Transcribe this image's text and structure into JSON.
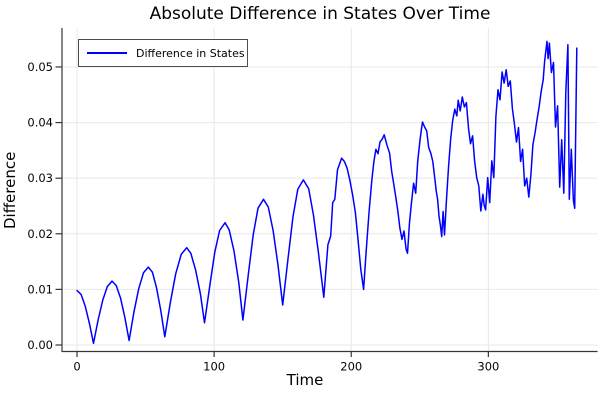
{
  "chart_data": {
    "type": "line",
    "title": "Absolute Difference in States Over Time",
    "xlabel": "Time",
    "ylabel": "Difference",
    "xlim": [
      -10.95,
      379.6
    ],
    "ylim": [
      -0.00117,
      0.05701
    ],
    "grid": true,
    "legend_position": "top-left",
    "colors": {
      "background": "#ffffff",
      "grid": "#e8e8e8",
      "axis": "#363636",
      "tick_label": "#060606",
      "line": "#0000ff"
    },
    "x_ticks": {
      "values": [
        0,
        100,
        200,
        300
      ],
      "labels": [
        "0",
        "100",
        "200",
        "300"
      ]
    },
    "y_ticks": {
      "values": [
        0.0,
        0.01,
        0.02,
        0.03,
        0.04,
        0.05
      ],
      "labels": [
        "0.00",
        "0.01",
        "0.02",
        "0.03",
        "0.04",
        "0.05"
      ]
    },
    "legend": {
      "entries": [
        {
          "label": "Difference in States",
          "color": "#0000ff"
        }
      ]
    },
    "series": [
      {
        "name": "Difference in States",
        "color": "#0000ff",
        "points": [
          [
            0,
            0.0098
          ],
          [
            3,
            0.0091
          ],
          [
            6,
            0.007
          ],
          [
            9,
            0.0039
          ],
          [
            12,
            0.0003
          ],
          [
            15.4,
            0.0045
          ],
          [
            18.8,
            0.0081
          ],
          [
            22.1,
            0.0105
          ],
          [
            25.5,
            0.0115
          ],
          [
            28.6,
            0.0107
          ],
          [
            31.8,
            0.0084
          ],
          [
            34.9,
            0.0049
          ],
          [
            38,
            0.0008
          ],
          [
            41.5,
            0.0059
          ],
          [
            45,
            0.0101
          ],
          [
            48.5,
            0.013
          ],
          [
            52,
            0.014
          ],
          [
            55,
            0.0131
          ],
          [
            58,
            0.0103
          ],
          [
            61,
            0.0063
          ],
          [
            64,
            0.0015
          ],
          [
            68,
            0.0076
          ],
          [
            72,
            0.0128
          ],
          [
            76,
            0.0163
          ],
          [
            80,
            0.0175
          ],
          [
            83,
            0.0165
          ],
          [
            86.5,
            0.0135
          ],
          [
            90,
            0.0092
          ],
          [
            93,
            0.004
          ],
          [
            97,
            0.0109
          ],
          [
            100.5,
            0.0167
          ],
          [
            104,
            0.0206
          ],
          [
            108,
            0.022
          ],
          [
            111,
            0.0207
          ],
          [
            114.5,
            0.0169
          ],
          [
            118,
            0.0112
          ],
          [
            121,
            0.0045
          ],
          [
            125,
            0.0128
          ],
          [
            128.5,
            0.0198
          ],
          [
            132,
            0.0246
          ],
          [
            136,
            0.0262
          ],
          [
            139.5,
            0.0248
          ],
          [
            143,
            0.0206
          ],
          [
            146.5,
            0.0145
          ],
          [
            150,
            0.0072
          ],
          [
            154,
            0.0158
          ],
          [
            157.5,
            0.0231
          ],
          [
            161,
            0.028
          ],
          [
            165,
            0.0297
          ],
          [
            169,
            0.0281
          ],
          [
            172.5,
            0.0233
          ],
          [
            176,
            0.0168
          ],
          [
            180,
            0.0086
          ],
          [
            183,
            0.018
          ],
          [
            185,
            0.0196
          ],
          [
            186.5,
            0.0256
          ],
          [
            188,
            0.0262
          ],
          [
            190,
            0.0315
          ],
          [
            193,
            0.0336
          ],
          [
            195,
            0.033
          ],
          [
            197,
            0.0318
          ],
          [
            199,
            0.0296
          ],
          [
            201,
            0.027
          ],
          [
            203,
            0.0238
          ],
          [
            205,
            0.0188
          ],
          [
            207,
            0.0136
          ],
          [
            209,
            0.01
          ],
          [
            211,
            0.0172
          ],
          [
            213,
            0.024
          ],
          [
            215,
            0.0296
          ],
          [
            216.5,
            0.033
          ],
          [
            218,
            0.0352
          ],
          [
            219.5,
            0.0344
          ],
          [
            221,
            0.0365
          ],
          [
            222.5,
            0.037
          ],
          [
            224,
            0.0378
          ],
          [
            226,
            0.036
          ],
          [
            228,
            0.0345
          ],
          [
            229.5,
            0.0312
          ],
          [
            231,
            0.029
          ],
          [
            232.5,
            0.0266
          ],
          [
            234,
            0.024
          ],
          [
            235.5,
            0.021
          ],
          [
            237,
            0.019
          ],
          [
            238.5,
            0.0205
          ],
          [
            240,
            0.0172
          ],
          [
            241,
            0.0165
          ],
          [
            242.5,
            0.022
          ],
          [
            244,
            0.0258
          ],
          [
            245.5,
            0.0291
          ],
          [
            247,
            0.0273
          ],
          [
            248.5,
            0.033
          ],
          [
            250,
            0.0365
          ],
          [
            251,
            0.0385
          ],
          [
            252,
            0.0401
          ],
          [
            253.5,
            0.0392
          ],
          [
            255,
            0.0385
          ],
          [
            256.5,
            0.0355
          ],
          [
            258,
            0.0345
          ],
          [
            259.5,
            0.033
          ],
          [
            261,
            0.0298
          ],
          [
            262,
            0.0276
          ],
          [
            263,
            0.0262
          ],
          [
            264,
            0.0232
          ],
          [
            265,
            0.0215
          ],
          [
            266,
            0.0195
          ],
          [
            267,
            0.024
          ],
          [
            268,
            0.0198
          ],
          [
            269.5,
            0.0262
          ],
          [
            271,
            0.0322
          ],
          [
            272.5,
            0.0371
          ],
          [
            274,
            0.0404
          ],
          [
            275.5,
            0.0424
          ],
          [
            277,
            0.0412
          ],
          [
            278,
            0.044
          ],
          [
            279.5,
            0.0421
          ],
          [
            281,
            0.0446
          ],
          [
            282.5,
            0.0428
          ],
          [
            284,
            0.0436
          ],
          [
            285.5,
            0.039
          ],
          [
            287,
            0.0362
          ],
          [
            288.5,
            0.0376
          ],
          [
            290,
            0.0331
          ],
          [
            291.5,
            0.0301
          ],
          [
            293,
            0.0286
          ],
          [
            294.5,
            0.0241
          ],
          [
            296,
            0.0271
          ],
          [
            297,
            0.0251
          ],
          [
            298,
            0.0243
          ],
          [
            299.5,
            0.0301
          ],
          [
            301,
            0.0256
          ],
          [
            302.5,
            0.0331
          ],
          [
            304,
            0.0301
          ],
          [
            305.5,
            0.0411
          ],
          [
            307,
            0.0459
          ],
          [
            308.5,
            0.0441
          ],
          [
            310,
            0.0491
          ],
          [
            311.5,
            0.0471
          ],
          [
            313,
            0.0495
          ],
          [
            314.5,
            0.0465
          ],
          [
            316,
            0.0475
          ],
          [
            317.5,
            0.0425
          ],
          [
            319,
            0.0398
          ],
          [
            320.5,
            0.0365
          ],
          [
            322,
            0.0391
          ],
          [
            323.5,
            0.033
          ],
          [
            325,
            0.0352
          ],
          [
            326.5,
            0.0286
          ],
          [
            328,
            0.03
          ],
          [
            329.5,
            0.0266
          ],
          [
            331,
            0.0306
          ],
          [
            332.5,
            0.036
          ],
          [
            334,
            0.0381
          ],
          [
            335.5,
            0.0405
          ],
          [
            337,
            0.0428
          ],
          [
            338.5,
            0.0455
          ],
          [
            340,
            0.0477
          ],
          [
            341,
            0.051
          ],
          [
            342,
            0.053
          ],
          [
            342.8,
            0.0546
          ],
          [
            343.6,
            0.0515
          ],
          [
            344.5,
            0.0543
          ],
          [
            346,
            0.049
          ],
          [
            347.5,
            0.0508
          ],
          [
            349,
            0.0392
          ],
          [
            350.5,
            0.043
          ],
          [
            352,
            0.0284
          ],
          [
            353.5,
            0.0369
          ],
          [
            355,
            0.0273
          ],
          [
            356.5,
            0.0455
          ],
          [
            358,
            0.054
          ],
          [
            359,
            0.0262
          ],
          [
            360.5,
            0.0352
          ],
          [
            362,
            0.026
          ],
          [
            363,
            0.0246
          ],
          [
            364.5,
            0.0534
          ]
        ]
      }
    ]
  }
}
